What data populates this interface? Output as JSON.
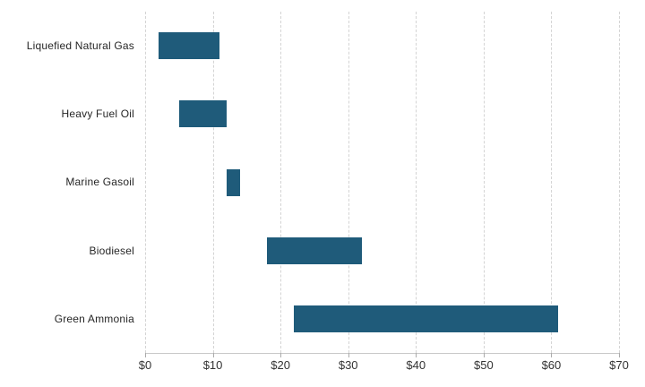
{
  "chart_data": {
    "type": "bar",
    "orientation": "horizontal-range",
    "categories": [
      "Liquefied Natural Gas",
      "Heavy Fuel Oil",
      "Marine Gasoil",
      "Biodiesel",
      "Green Ammonia"
    ],
    "series": [
      {
        "ranges": [
          {
            "start": 2,
            "end": 11
          },
          {
            "start": 5,
            "end": 12
          },
          {
            "start": 12,
            "end": 14
          },
          {
            "start": 18,
            "end": 32
          },
          {
            "start": 22,
            "end": 61
          }
        ]
      }
    ],
    "title": "",
    "xlabel": "",
    "ylabel": "",
    "xlim": [
      0,
      70
    ],
    "x_ticks": [
      0,
      10,
      20,
      30,
      40,
      50,
      60,
      70
    ],
    "x_tick_labels": [
      "$0",
      "$10",
      "$20",
      "$30",
      "$40",
      "$50",
      "$60",
      "$70"
    ],
    "grid": "vertical-dashed",
    "legend": "none"
  },
  "colors": {
    "bar": "#1f5b7a",
    "gridline": "#d4d4d4",
    "axis_line": "#c9c9c9",
    "tick_mark": "#ababab",
    "label_text": "#262626",
    "tick_text": "#333333",
    "background": "#ffffff"
  }
}
